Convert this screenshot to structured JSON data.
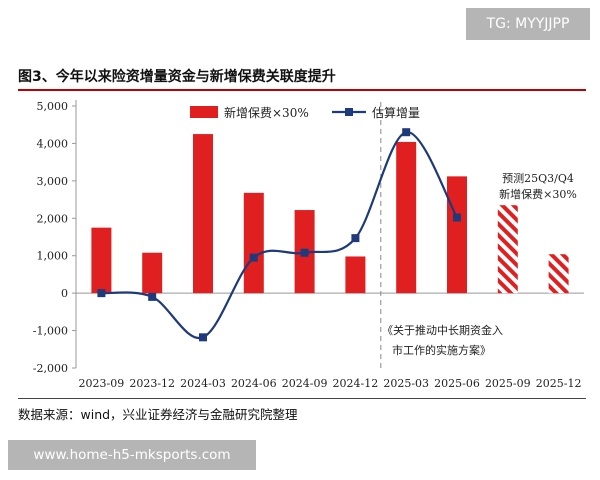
{
  "watermark_top": "TG: MYYJJPP",
  "title": "图3、今年以来险资增量资金与新增保费关联度提升",
  "source": "数据来源：wind，兴业证券经济与金融研究院整理",
  "watermark_bottom": "www.home-h5-mksports.com",
  "chart_data": {
    "type": "bar",
    "categories": [
      "2023-09",
      "2023-12",
      "2024-03",
      "2024-06",
      "2024-09",
      "2024-12",
      "2025-03",
      "2025-06",
      "2025-09",
      "2025-12"
    ],
    "ylim": [
      -2000,
      5000
    ],
    "yticks": [
      "5,000",
      "4,000",
      "3,000",
      "2,000",
      "1,000",
      "0",
      "-1,000",
      "-2,000"
    ],
    "series": [
      {
        "name": "新增保费×30%",
        "type": "bar",
        "color": "#e02020",
        "values": [
          1750,
          1080,
          4250,
          2680,
          2220,
          980,
          4040,
          3120,
          2350,
          1040
        ],
        "hatched": [
          false,
          false,
          false,
          false,
          false,
          false,
          false,
          false,
          true,
          true
        ]
      },
      {
        "name": "估算增量",
        "type": "line",
        "color": "#1f3a7a",
        "values": [
          0,
          -100,
          -1180,
          950,
          1080,
          1470,
          4300,
          2020,
          null,
          null
        ]
      }
    ],
    "legend_position": "top",
    "annotations": {
      "forecast_line1": "预测25Q3/Q4",
      "forecast_line2": "新增保费×30%",
      "policy_line1": "《关于推动中长期资金入",
      "policy_line2": "市工作的实施方案》"
    }
  }
}
